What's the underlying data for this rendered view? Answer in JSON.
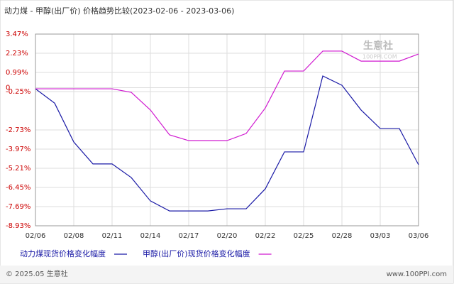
{
  "chart_data": {
    "type": "line",
    "title": "动力煤 - 甲醇(出厂价) 价格趋势比较(2023-02-06 - 2023-03-06)",
    "categories": [
      "02/06",
      null,
      "02/08",
      null,
      "02/11",
      null,
      "02/14",
      null,
      "02/17",
      null,
      "02/20",
      null,
      "02/22",
      null,
      "02/25",
      null,
      "02/28",
      null,
      "03/03",
      null,
      "03/06"
    ],
    "series": [
      {
        "name": "动力煤现货价格变化幅度",
        "color": "#1a1aa6",
        "values": [
          -0.07,
          -1.0,
          -3.51,
          -4.93,
          -4.93,
          -5.81,
          -7.32,
          -7.97,
          -7.97,
          -7.97,
          -7.83,
          -7.83,
          -6.54,
          -4.15,
          -4.15,
          0.76,
          0.16,
          -1.44,
          -2.64,
          -2.64,
          -4.98
        ]
      },
      {
        "name": "甲醇(出厂价)现货价格变化幅度",
        "color": "#d01ad0",
        "values": [
          -0.07,
          -0.07,
          -0.07,
          -0.07,
          -0.07,
          -0.3,
          -1.44,
          -3.05,
          -3.42,
          -3.42,
          -3.42,
          -2.96,
          -1.31,
          1.08,
          1.08,
          2.37,
          2.37,
          1.72,
          1.72,
          1.72,
          2.18
        ]
      }
    ],
    "ylim": [
      -8.93,
      3.47
    ],
    "yticks": [
      {
        "value": 3.47,
        "label": "3.47%"
      },
      {
        "value": 2.23,
        "label": "2.23%"
      },
      {
        "value": 0.99,
        "label": "0.99%"
      },
      {
        "value": -0.25,
        "label": "-0.25%"
      },
      0,
      {
        "value": -2.73,
        "label": "-2.73%"
      },
      {
        "value": -3.97,
        "label": "-3.97%"
      },
      {
        "value": -5.21,
        "label": "-5.21%"
      },
      {
        "value": -6.45,
        "label": "-6.45%"
      },
      {
        "value": -7.69,
        "label": "-7.69%"
      },
      {
        "value": -8.93,
        "label": "-8.93%"
      }
    ],
    "grid": true,
    "watermark": "生意社",
    "watermark_url": "100PPI.COM",
    "footer_left": "© 2025.05 生意社",
    "footer_right": "www.100PPI.com"
  }
}
